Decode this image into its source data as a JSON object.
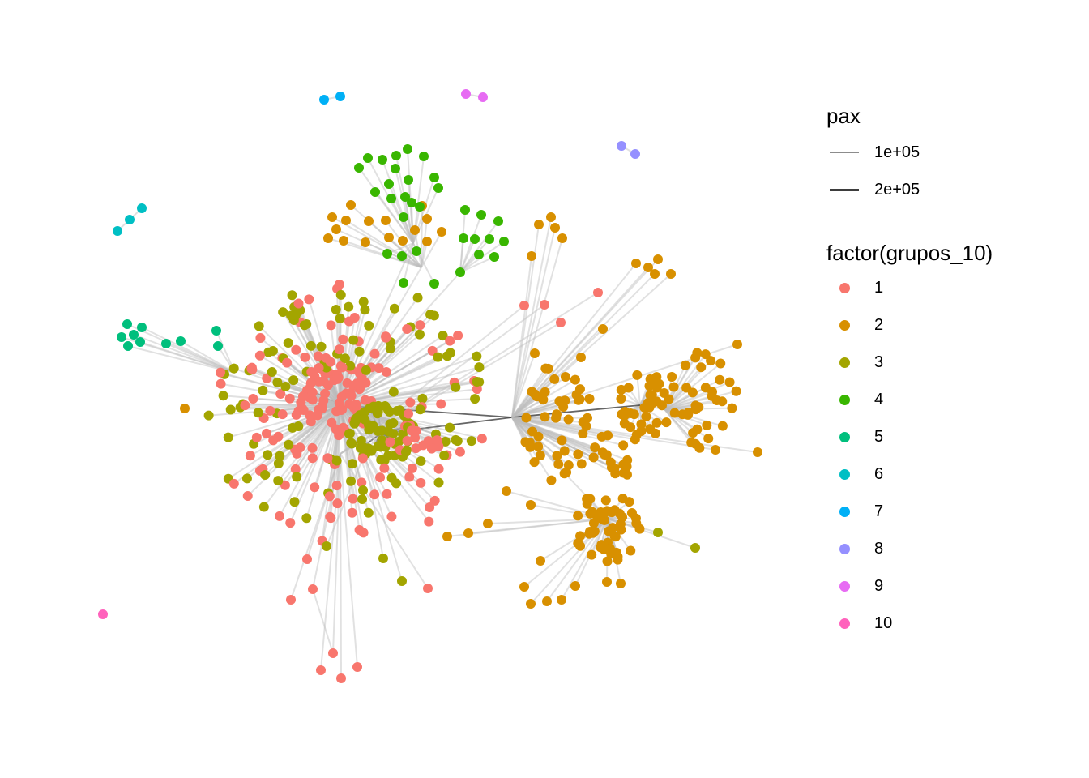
{
  "legend": {
    "edge_title": "pax",
    "edge_items": [
      {
        "label": "1e+05",
        "color": "#8c8c8c"
      },
      {
        "label": "2e+05",
        "color": "#3d3d3d"
      }
    ],
    "group_title": "factor(grupos_10)",
    "group_items": [
      {
        "label": "1",
        "color": "#F8766D"
      },
      {
        "label": "2",
        "color": "#D89000"
      },
      {
        "label": "3",
        "color": "#A3A500"
      },
      {
        "label": "4",
        "color": "#39B600"
      },
      {
        "label": "5",
        "color": "#00BF7D"
      },
      {
        "label": "6",
        "color": "#00BFC4"
      },
      {
        "label": "7",
        "color": "#00B0F6"
      },
      {
        "label": "8",
        "color": "#9590FF"
      },
      {
        "label": "9",
        "color": "#E76BF3"
      },
      {
        "label": "10",
        "color": "#FF62BC"
      }
    ]
  },
  "graph": {
    "edge_color": "#bdbdbd",
    "strong_edge_color": "#333333"
  }
}
